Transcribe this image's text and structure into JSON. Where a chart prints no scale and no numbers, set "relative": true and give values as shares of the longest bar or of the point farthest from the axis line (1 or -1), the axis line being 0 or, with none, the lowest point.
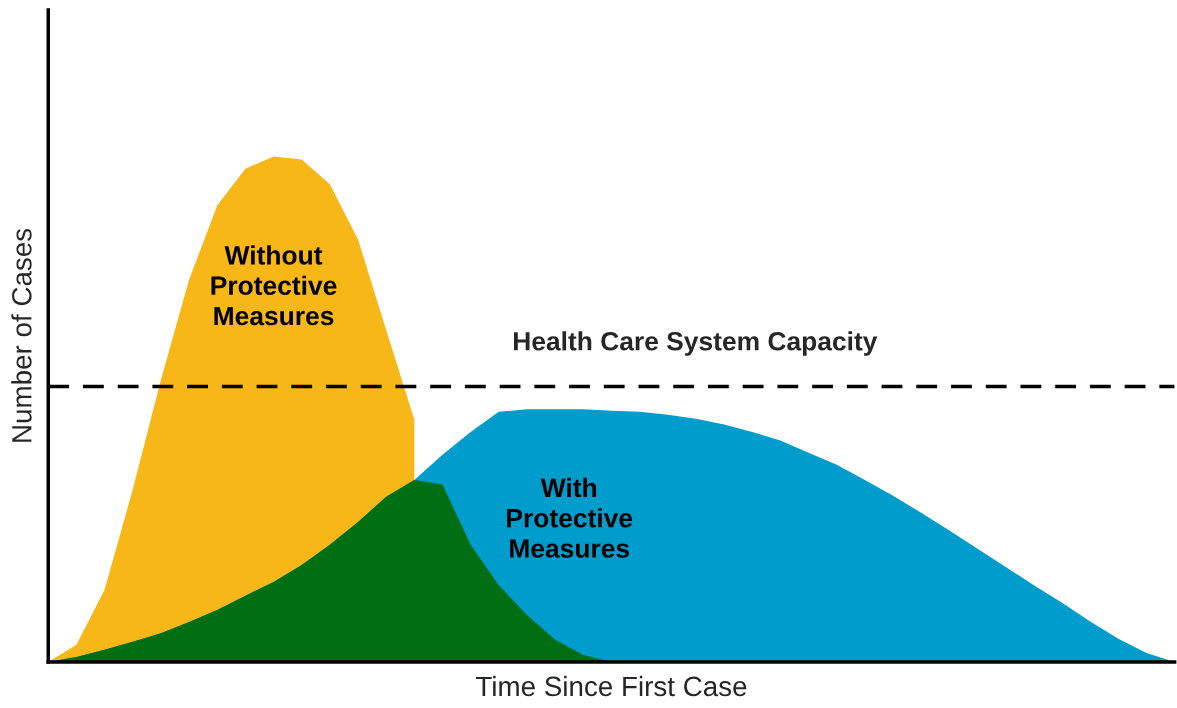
{
  "chart_data": {
    "type": "area",
    "relative": true,
    "xlabel": "Time Since First Case",
    "ylabel": "Number of Cases",
    "legend": false,
    "categories": [
      null,
      null,
      null,
      null,
      null,
      null,
      null,
      null,
      null,
      null,
      null,
      null,
      null,
      null,
      null,
      null,
      null,
      null,
      null,
      null,
      null,
      null,
      null,
      null,
      null,
      null,
      null,
      null,
      null,
      null,
      null,
      null,
      null,
      null,
      null,
      null,
      null,
      null,
      null,
      null,
      null
    ],
    "series": [
      {
        "name": "Without Protective Measures",
        "color": "#f7b718",
        "values": [
          0,
          0.034,
          0.143,
          0.341,
          0.558,
          0.756,
          0.903,
          0.976,
          1.0,
          0.994,
          0.945,
          0.836,
          0.657,
          0.479,
          null,
          null,
          null,
          null,
          null,
          null,
          null,
          null,
          null,
          null,
          null,
          null,
          null,
          null,
          null,
          null,
          null,
          null,
          null,
          null,
          null,
          null,
          null,
          null,
          null,
          null,
          null
        ]
      },
      {
        "name": "With Protective Measures",
        "color": "#009ccc",
        "values": [
          0,
          0.01,
          0.024,
          0.04,
          0.057,
          0.079,
          0.103,
          0.131,
          0.158,
          0.192,
          0.232,
          0.277,
          0.327,
          0.36,
          0.41,
          0.455,
          0.495,
          0.5,
          0.5,
          0.5,
          0.497,
          0.495,
          0.489,
          0.481,
          0.47,
          0.455,
          0.438,
          0.414,
          0.39,
          0.36,
          0.329,
          0.295,
          0.26,
          0.224,
          0.188,
          0.152,
          0.117,
          0.08,
          0.046,
          0.018,
          0
        ]
      },
      {
        "color": "#006e12",
        "values": [
          0,
          0.01,
          0.024,
          0.04,
          0.057,
          0.079,
          0.103,
          0.131,
          0.158,
          0.192,
          0.232,
          0.277,
          0.327,
          0.36,
          0.351,
          0.232,
          0.152,
          0.093,
          0.044,
          0.014,
          0,
          0,
          0,
          0,
          0,
          0,
          0,
          0,
          0,
          0,
          0,
          0,
          0,
          0,
          0,
          0,
          0,
          0,
          0,
          0,
          0
        ]
      }
    ],
    "ref_lines": [
      {
        "axis": "y",
        "value": 0.545,
        "label": "Health Care System Capacity",
        "color": "#000000",
        "line_style": "dashed"
      }
    ]
  }
}
